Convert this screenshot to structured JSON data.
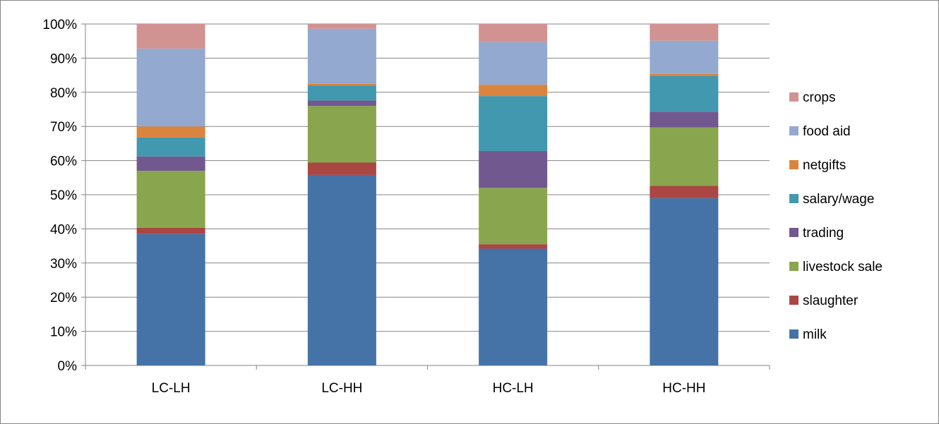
{
  "chart_data": {
    "type": "bar",
    "stacked": true,
    "percent_stacked": true,
    "categories": [
      "LC-LH",
      "LC-HH",
      "HC-LH",
      "HC-HH"
    ],
    "series": [
      {
        "name": "milk",
        "color": "#4572A7",
        "values": [
          38.5,
          55.8,
          34.2,
          49.0
        ]
      },
      {
        "name": "slaughter",
        "color": "#AA4643",
        "values": [
          1.8,
          3.6,
          1.3,
          3.6
        ]
      },
      {
        "name": "livestock sale",
        "color": "#89A54E",
        "values": [
          16.7,
          16.6,
          16.5,
          17.1
        ]
      },
      {
        "name": "trading",
        "color": "#71588F",
        "values": [
          4.2,
          1.6,
          10.8,
          4.6
        ]
      },
      {
        "name": "salary/wage",
        "color": "#4198AF",
        "values": [
          5.6,
          4.4,
          16.1,
          10.5
        ]
      },
      {
        "name": "netgifts",
        "color": "#DB843D",
        "values": [
          3.2,
          0.5,
          3.3,
          0.6
        ]
      },
      {
        "name": "food aid",
        "color": "#93A9CF",
        "values": [
          22.8,
          16.1,
          12.5,
          9.7
        ]
      },
      {
        "name": "crops",
        "color": "#D19392",
        "values": [
          7.2,
          1.4,
          5.3,
          4.9
        ]
      }
    ],
    "ylim": [
      0,
      100
    ],
    "yticks": [
      "0%",
      "10%",
      "20%",
      "30%",
      "40%",
      "50%",
      "60%",
      "70%",
      "80%",
      "90%",
      "100%"
    ],
    "grid": true,
    "legend_position": "right",
    "gridline_color": "#868686",
    "axis_color": "#868686"
  }
}
